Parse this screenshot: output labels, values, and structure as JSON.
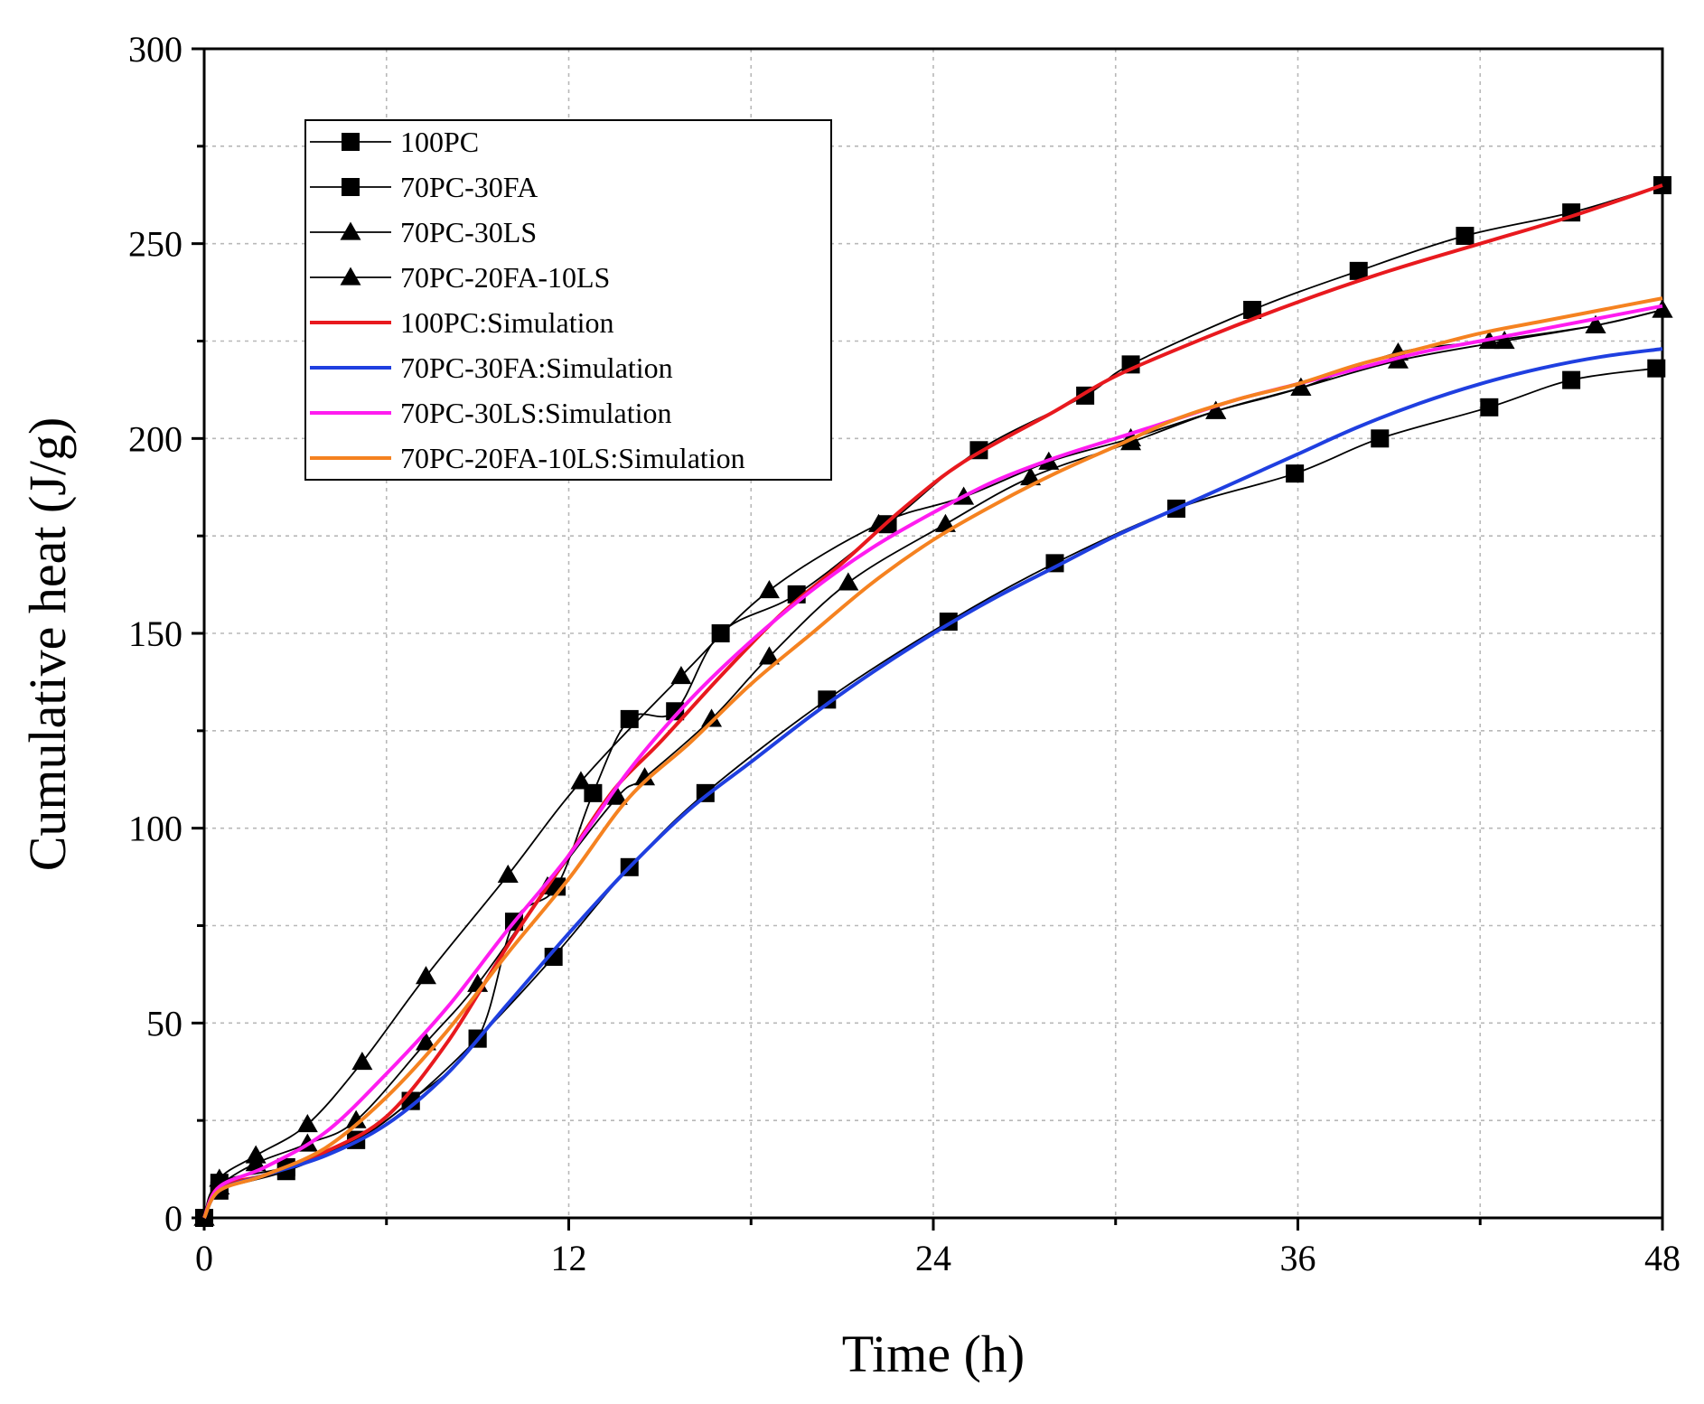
{
  "chart_data": {
    "type": "line",
    "title": "",
    "xlabel": "Time (h)",
    "ylabel": "Cumulative heat (J/g)",
    "xlim": [
      0,
      48
    ],
    "ylim": [
      0,
      300
    ],
    "xticks": [
      0,
      12,
      24,
      36,
      48
    ],
    "yticks": [
      0,
      50,
      100,
      150,
      200,
      250,
      300
    ],
    "x_minor_step": 6,
    "y_minor_step": 25,
    "grid": true,
    "legend_position": "top-left",
    "series": [
      {
        "name": "100PC",
        "kind": "measured",
        "marker": "square",
        "color": "#000000",
        "points": [
          [
            0,
            0
          ],
          [
            0.5,
            9
          ],
          [
            2.7,
            13
          ],
          [
            5,
            20
          ],
          [
            6.8,
            30
          ],
          [
            9,
            46
          ],
          [
            10.2,
            76
          ],
          [
            11.6,
            85
          ],
          [
            12.8,
            109
          ],
          [
            14,
            128
          ],
          [
            15.5,
            130
          ],
          [
            17,
            150
          ],
          [
            19.5,
            160
          ],
          [
            22.5,
            178
          ],
          [
            25.5,
            197
          ],
          [
            29,
            211
          ],
          [
            30.5,
            219
          ],
          [
            34.5,
            233
          ],
          [
            38,
            243
          ],
          [
            41.5,
            252
          ],
          [
            45,
            258
          ],
          [
            48,
            265
          ]
        ]
      },
      {
        "name": "70PC-30FA",
        "kind": "measured",
        "marker": "square",
        "color": "#000000",
        "points": [
          [
            0,
            0
          ],
          [
            0.5,
            7
          ],
          [
            2.7,
            12
          ],
          [
            5,
            20
          ],
          [
            6.8,
            30
          ],
          [
            9,
            46
          ],
          [
            11.5,
            67
          ],
          [
            14,
            90
          ],
          [
            16.5,
            109
          ],
          [
            20.5,
            133
          ],
          [
            24.5,
            153
          ],
          [
            28,
            168
          ],
          [
            32,
            182
          ],
          [
            35.9,
            191
          ],
          [
            38.7,
            200
          ],
          [
            42.3,
            208
          ],
          [
            45,
            215
          ],
          [
            47.8,
            218
          ]
        ]
      },
      {
        "name": "70PC-30LS",
        "kind": "measured",
        "marker": "triangle",
        "color": "#000000",
        "points": [
          [
            0,
            0
          ],
          [
            0.5,
            10
          ],
          [
            1.7,
            16
          ],
          [
            3.4,
            24
          ],
          [
            5.2,
            40
          ],
          [
            7.3,
            62
          ],
          [
            10,
            88
          ],
          [
            12.4,
            112
          ],
          [
            15.7,
            139
          ],
          [
            18.6,
            161
          ],
          [
            22.2,
            178
          ],
          [
            25,
            185
          ],
          [
            27.8,
            194
          ],
          [
            30.5,
            200
          ],
          [
            33.3,
            207
          ],
          [
            36.1,
            213
          ],
          [
            39.3,
            222
          ],
          [
            42.3,
            225
          ],
          [
            45.8,
            229
          ],
          [
            48,
            233
          ]
        ]
      },
      {
        "name": "70PC-20FA-10LS",
        "kind": "measured",
        "marker": "triangle",
        "color": "#000000",
        "points": [
          [
            0,
            0
          ],
          [
            0.5,
            8
          ],
          [
            1.7,
            14
          ],
          [
            3.4,
            19
          ],
          [
            5,
            25
          ],
          [
            7.3,
            45
          ],
          [
            9,
            60
          ],
          [
            11.3,
            85
          ],
          [
            13.6,
            108
          ],
          [
            14.5,
            113
          ],
          [
            16.7,
            128
          ],
          [
            18.6,
            144
          ],
          [
            21.2,
            163
          ],
          [
            24.4,
            178
          ],
          [
            27.2,
            190
          ],
          [
            30.5,
            199
          ],
          [
            33.3,
            207
          ],
          [
            36.1,
            213
          ],
          [
            39.3,
            220
          ],
          [
            42.8,
            225
          ],
          [
            45.8,
            229
          ],
          [
            48,
            233
          ]
        ]
      },
      {
        "name": "100PC:Simulation",
        "kind": "simulation",
        "color": "#e8191e",
        "points": [
          [
            0,
            0
          ],
          [
            0.5,
            8
          ],
          [
            2,
            11
          ],
          [
            4,
            17
          ],
          [
            6,
            26
          ],
          [
            8,
            45
          ],
          [
            10,
            70
          ],
          [
            12,
            93
          ],
          [
            13.5,
            110
          ],
          [
            15,
            122
          ],
          [
            17,
            139
          ],
          [
            19,
            155
          ],
          [
            21,
            168
          ],
          [
            23,
            182
          ],
          [
            25,
            194
          ],
          [
            28,
            207
          ],
          [
            30,
            216
          ],
          [
            33,
            226
          ],
          [
            36,
            235
          ],
          [
            39,
            243
          ],
          [
            42,
            250
          ],
          [
            45,
            257
          ],
          [
            48,
            265
          ]
        ]
      },
      {
        "name": "70PC-30FA:Simulation",
        "kind": "simulation",
        "color": "#1f3fe0",
        "points": [
          [
            0,
            0
          ],
          [
            0.5,
            7
          ],
          [
            2,
            11
          ],
          [
            4,
            16
          ],
          [
            6,
            24
          ],
          [
            8,
            37
          ],
          [
            10,
            55
          ],
          [
            12,
            73
          ],
          [
            14,
            90
          ],
          [
            16,
            105
          ],
          [
            18,
            117
          ],
          [
            20,
            129
          ],
          [
            22,
            140
          ],
          [
            24,
            150
          ],
          [
            26,
            159
          ],
          [
            28,
            167
          ],
          [
            30,
            175
          ],
          [
            32,
            182
          ],
          [
            34,
            189
          ],
          [
            36,
            196
          ],
          [
            38,
            203
          ],
          [
            40,
            209
          ],
          [
            42,
            214
          ],
          [
            44,
            218
          ],
          [
            46,
            221
          ],
          [
            48,
            223
          ]
        ]
      },
      {
        "name": "70PC-30LS:Simulation",
        "kind": "simulation",
        "color": "#ff1cf0",
        "points": [
          [
            0,
            0
          ],
          [
            0.5,
            8
          ],
          [
            2,
            13
          ],
          [
            4,
            22
          ],
          [
            6,
            37
          ],
          [
            8,
            54
          ],
          [
            10,
            74
          ],
          [
            12,
            93
          ],
          [
            14,
            115
          ],
          [
            16,
            133
          ],
          [
            18,
            148
          ],
          [
            20,
            161
          ],
          [
            22,
            172
          ],
          [
            24,
            181
          ],
          [
            26,
            189
          ],
          [
            28,
            195
          ],
          [
            30,
            200
          ],
          [
            32,
            205
          ],
          [
            34,
            210
          ],
          [
            36,
            214
          ],
          [
            38,
            218
          ],
          [
            40,
            222
          ],
          [
            42,
            225
          ],
          [
            44,
            228
          ],
          [
            46,
            231
          ],
          [
            48,
            234
          ]
        ]
      },
      {
        "name": "70PC-20FA-10LS:Simulation",
        "kind": "simulation",
        "color": "#f58220",
        "points": [
          [
            0,
            0
          ],
          [
            0.5,
            7
          ],
          [
            2,
            11
          ],
          [
            4,
            18
          ],
          [
            6,
            31
          ],
          [
            8,
            48
          ],
          [
            10,
            68
          ],
          [
            12,
            87
          ],
          [
            14,
            108
          ],
          [
            16,
            122
          ],
          [
            18,
            137
          ],
          [
            20,
            150
          ],
          [
            22,
            163
          ],
          [
            24,
            174
          ],
          [
            26,
            183
          ],
          [
            28,
            191
          ],
          [
            30,
            198
          ],
          [
            32,
            205
          ],
          [
            34,
            210
          ],
          [
            36,
            214
          ],
          [
            38,
            219
          ],
          [
            40,
            223
          ],
          [
            42,
            227
          ],
          [
            44,
            230
          ],
          [
            46,
            233
          ],
          [
            48,
            236
          ]
        ]
      }
    ]
  }
}
